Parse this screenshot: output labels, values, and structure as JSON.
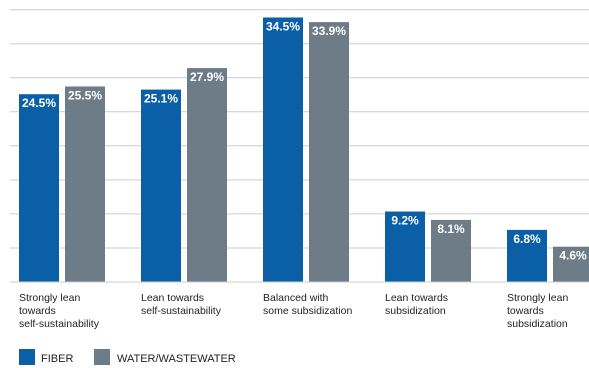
{
  "chart_data": {
    "type": "bar",
    "categories": [
      [
        "Strongly lean",
        "towards",
        "self-sustainability"
      ],
      [
        "Lean towards",
        "self-sustainability"
      ],
      [
        "Balanced with",
        "some subsidization"
      ],
      [
        "Lean towards",
        "subsidization"
      ],
      [
        "Strongly lean",
        "towards",
        "subsidization"
      ]
    ],
    "series": [
      {
        "name": "FIBER",
        "color": "#0a5fa6",
        "values": [
          24.5,
          25.1,
          34.5,
          9.2,
          6.8
        ],
        "labels": [
          "24.5%",
          "25.1%",
          "34.5%",
          "9.2%",
          "6.8%"
        ]
      },
      {
        "name": "WATER/WASTEWATER",
        "color": "#6e7c87",
        "values": [
          25.5,
          27.9,
          33.9,
          8.1,
          4.6
        ],
        "labels": [
          "25.5%",
          "27.9%",
          "33.9%",
          "8.1%",
          "4.6%"
        ]
      }
    ],
    "title": "",
    "xlabel": "",
    "ylabel": "",
    "ylim": [
      0,
      36
    ],
    "grid": true,
    "legend": "bottom-left"
  }
}
